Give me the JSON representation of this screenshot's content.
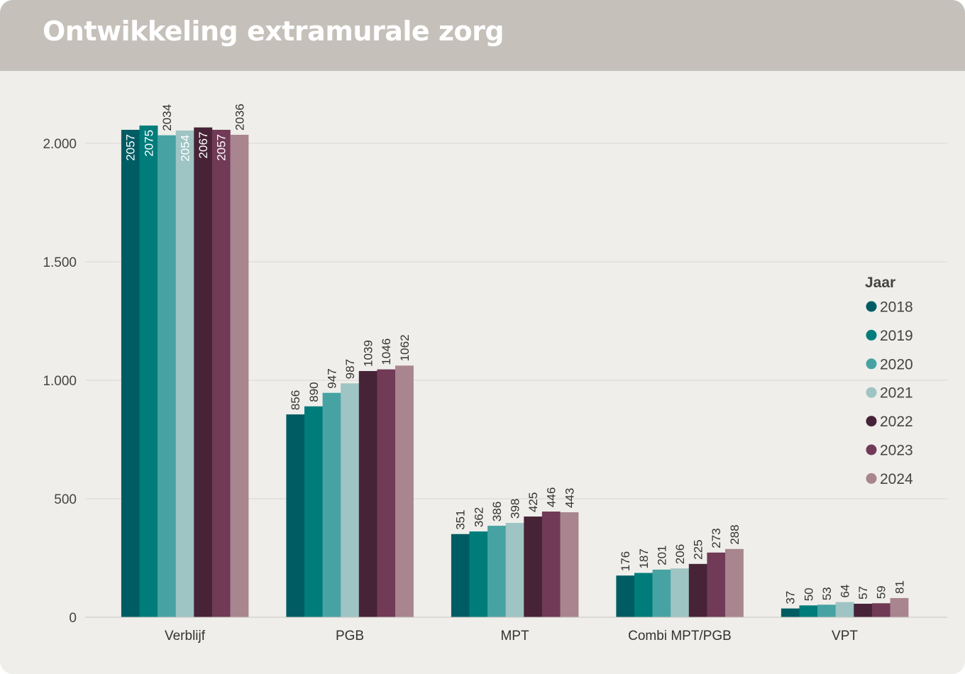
{
  "title": "Ontwikkeling extramurale zorg",
  "chart_data": {
    "type": "bar",
    "categories": [
      "Verblijf",
      "PGB",
      "MPT",
      "Combi MPT/PGB",
      "VPT"
    ],
    "series": [
      {
        "name": "2018",
        "color": "#005c63",
        "values": [
          2057,
          856,
          351,
          176,
          37
        ]
      },
      {
        "name": "2019",
        "color": "#007c7b",
        "values": [
          2075,
          890,
          362,
          187,
          50
        ]
      },
      {
        "name": "2020",
        "color": "#47a3a3",
        "values": [
          2034,
          947,
          386,
          201,
          53
        ]
      },
      {
        "name": "2021",
        "color": "#9fc4c4",
        "values": [
          2054,
          987,
          398,
          206,
          64
        ]
      },
      {
        "name": "2022",
        "color": "#472337",
        "values": [
          2067,
          1039,
          425,
          225,
          57
        ]
      },
      {
        "name": "2023",
        "color": "#713a57",
        "values": [
          2057,
          1046,
          446,
          273,
          59
        ]
      },
      {
        "name": "2024",
        "color": "#a8858f",
        "values": [
          2036,
          1062,
          443,
          288,
          81
        ]
      }
    ],
    "ylim": [
      0,
      2000
    ],
    "yticks": [
      0,
      500,
      1000,
      1500,
      2000
    ],
    "ytick_labels": [
      "0",
      "500",
      "1.000",
      "1.500",
      "2.000"
    ],
    "grid": true,
    "legend_title": "Jaar",
    "legend_position": "right",
    "xlabel": "",
    "ylabel": ""
  }
}
